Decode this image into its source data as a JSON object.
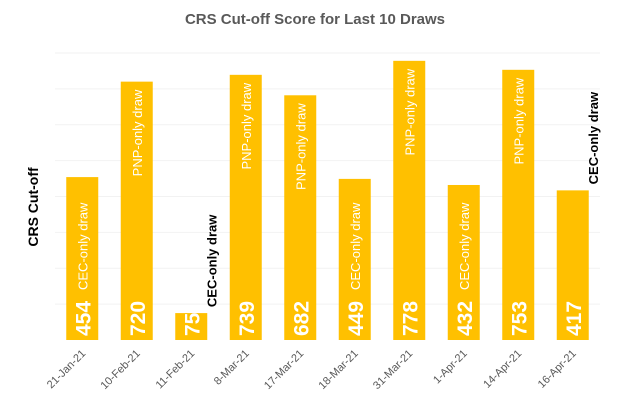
{
  "chart_data": {
    "type": "bar",
    "title": "CRS Cut-off Score for Last 10 Draws",
    "xlabel": "",
    "ylabel": "CRS Cut-off",
    "ylim": [
      0,
      850
    ],
    "grid": true,
    "categories": [
      "21-Jan-21",
      "10-Feb-21",
      "11-Feb-21",
      "8-Mar-21",
      "17-Mar-21",
      "18-Mar-21",
      "31-Mar-21",
      "1-Apr-21",
      "14-Apr-21",
      "16-Apr-21"
    ],
    "values": [
      454,
      720,
      75,
      739,
      682,
      449,
      778,
      432,
      753,
      417
    ],
    "labels": [
      "454",
      "720",
      "75",
      "739",
      "682",
      "449",
      "778",
      "432",
      "753",
      "417"
    ],
    "annotations": [
      "CEC-only draw",
      "PNP-only draw",
      "CEC-only draw",
      "PNP-only draw",
      "PNP-only draw",
      "CEC-only draw",
      "PNP-only draw",
      "CEC-only draw",
      "PNP-only draw",
      "CEC-only draw"
    ],
    "colors": {
      "bar": "#ffc000",
      "text_inside": "#ffffff",
      "text_outside": "#000000"
    }
  }
}
